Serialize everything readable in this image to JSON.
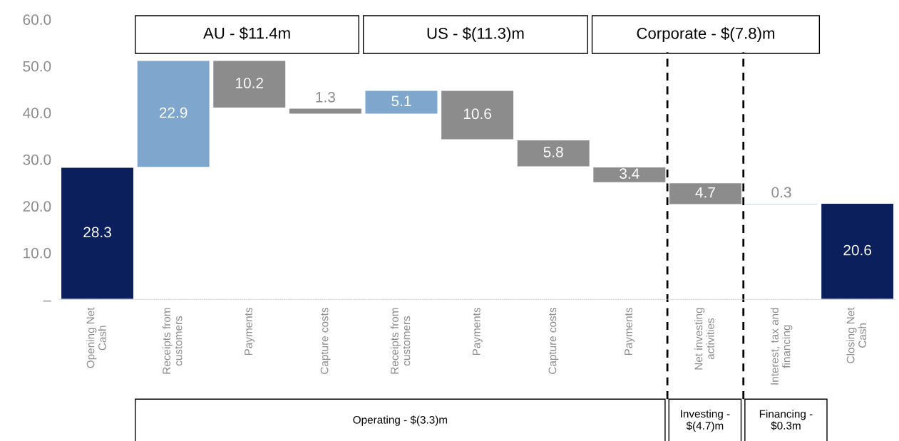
{
  "chart_data": {
    "type": "bar",
    "categories": [
      "Opening Net\nCash",
      "Receipts from\ncustomers",
      "Payments",
      "Capture costs",
      "Receipts from\ncustomers",
      "Payments",
      "Capture costs",
      "Payments",
      "Net investing\nactivities",
      "Interest, tax and\nfinancing",
      "Closing Net\nCash"
    ],
    "values": [
      28.3,
      22.9,
      -10.2,
      -1.3,
      5.1,
      -10.6,
      -5.8,
      -3.4,
      -4.7,
      0.3,
      20.6
    ],
    "base": [
      0,
      28.3,
      51.2,
      41.0,
      39.7,
      44.8,
      34.2,
      28.4,
      25.0,
      20.3,
      0
    ],
    "colors": [
      "#0a1f5c",
      "#7fa6cc",
      "#8c8c8c",
      "#8c8c8c",
      "#7fa6cc",
      "#8c8c8c",
      "#8c8c8c",
      "#8c8c8c",
      "#8c8c8c",
      "#7fa6cc",
      "#0a1f5c"
    ],
    "value_labels": [
      "28.3",
      "22.9",
      "10.2",
      "1.3",
      "5.1",
      "10.6",
      "5.8",
      "3.4",
      "4.7",
      "0.3",
      "20.6"
    ],
    "ylim": [
      0,
      60
    ],
    "yticks": [
      {
        "value": 0,
        "label": "–"
      },
      {
        "value": 10,
        "label": "10.0"
      },
      {
        "value": 20,
        "label": "20.0"
      },
      {
        "value": 30,
        "label": "30.0"
      },
      {
        "value": 40,
        "label": "40.0"
      },
      {
        "value": 50,
        "label": "50.0"
      },
      {
        "value": 60,
        "label": "60.0"
      }
    ],
    "annotations": [
      "AU - $11.4m",
      "US - $(11.3)m",
      "Corporate - $(7.8)m",
      "Operating - $(3.3)m",
      "Investing -\n$(4.7)m",
      "Financing -\n$0.3m"
    ],
    "grid": false,
    "legend": false
  }
}
